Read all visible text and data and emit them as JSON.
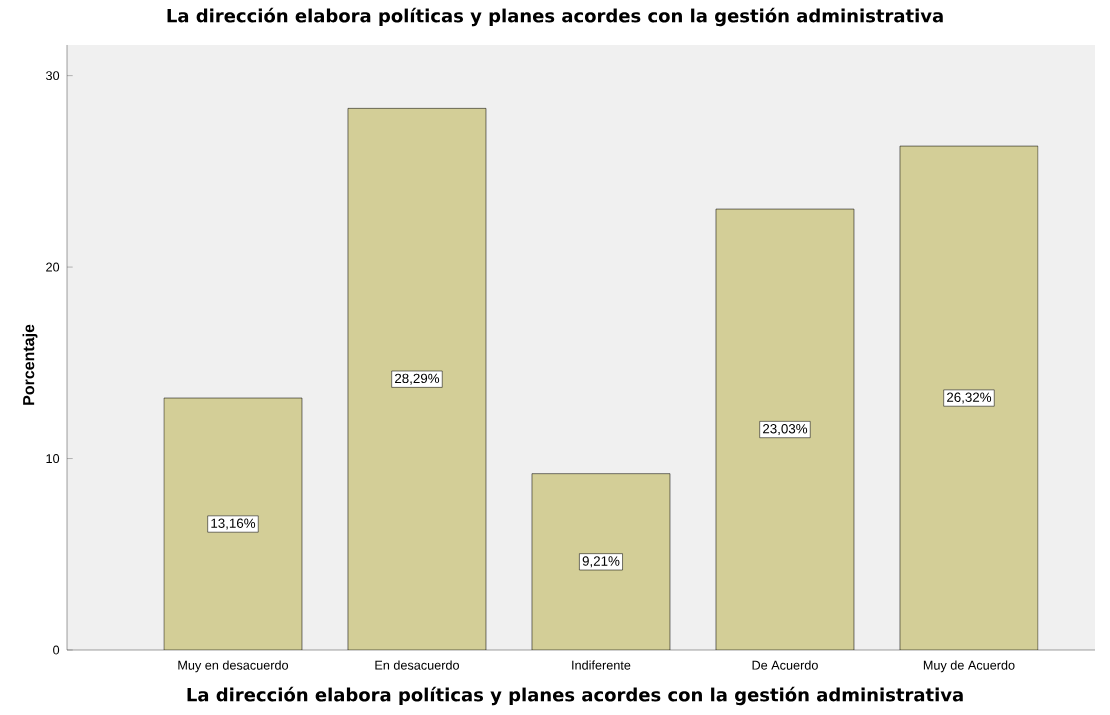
{
  "chart_data": {
    "type": "bar",
    "title": "La dirección elabora políticas y planes acordes con la gestión administrativa",
    "xlabel": "La dirección elabora políticas y planes acordes con la gestión administrativa",
    "ylabel": "Porcentaje",
    "categories": [
      "Muy en desacuerdo",
      "En desacuerdo",
      "Indiferente",
      "De Acuerdo",
      "Muy de Acuerdo"
    ],
    "values": [
      13.16,
      28.29,
      9.21,
      23.03,
      26.32
    ],
    "value_labels": [
      "13,16%",
      "28,29%",
      "9,21%",
      "23,03%",
      "26,32%"
    ],
    "color": "#d3ce97",
    "ylim": [
      0,
      31.6
    ],
    "yticks": [
      0,
      10,
      20,
      30
    ],
    "grid": false
  }
}
